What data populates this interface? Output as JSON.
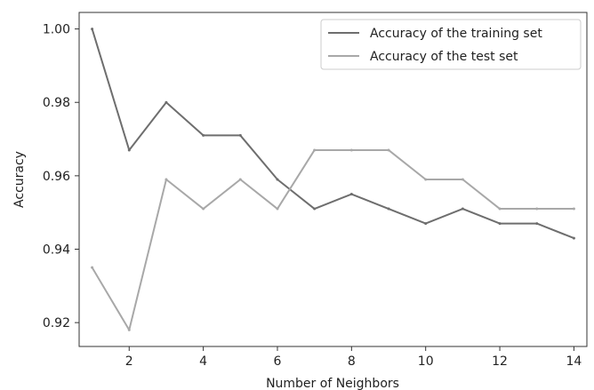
{
  "chart_data": {
    "type": "line",
    "title": "",
    "xlabel": "Number of Neighbors",
    "ylabel": "Accuracy",
    "xlim": [
      0.65,
      14.35
    ],
    "ylim": [
      0.9135,
      1.0045
    ],
    "xticks": [
      2,
      4,
      6,
      8,
      10,
      12,
      14
    ],
    "yticks": [
      0.92,
      0.94,
      0.96,
      0.98,
      1.0
    ],
    "ytick_labels": [
      "0.92",
      "0.94",
      "0.96",
      "0.98",
      "1.00"
    ],
    "grid": false,
    "legend_position": "top-right",
    "x": [
      1,
      2,
      3,
      4,
      5,
      6,
      7,
      8,
      9,
      10,
      11,
      12,
      13,
      14
    ],
    "series": [
      {
        "name": "Accuracy of the training set",
        "color": "#6e6e6e",
        "values": [
          1.0,
          0.967,
          0.98,
          0.971,
          0.971,
          0.959,
          0.951,
          0.955,
          0.951,
          0.947,
          0.951,
          0.947,
          0.947,
          0.943
        ]
      },
      {
        "name": "Accuracy of the test set",
        "color": "#a8a8a8",
        "values": [
          0.935,
          0.918,
          0.959,
          0.951,
          0.959,
          0.951,
          0.967,
          0.967,
          0.967,
          0.959,
          0.959,
          0.951,
          0.951,
          0.951
        ]
      }
    ]
  }
}
